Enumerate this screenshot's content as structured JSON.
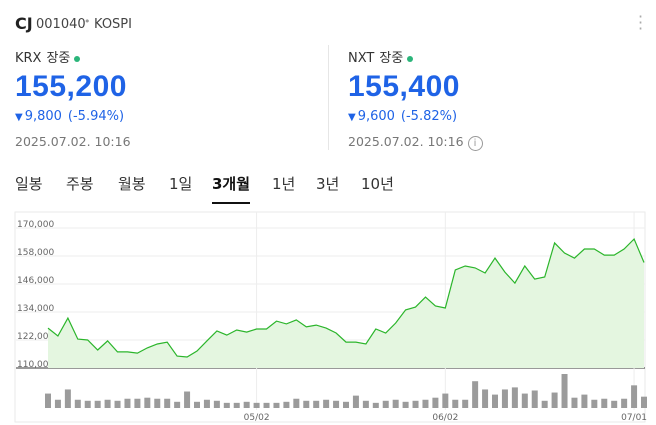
{
  "header": {
    "name": "CJ",
    "code": "001040",
    "market": "KOSPI"
  },
  "quotes": [
    {
      "exchange": "KRX",
      "status": "장중",
      "price": "155,200",
      "change": "9,800",
      "change_pct": "(-5.94%)",
      "time": "2025.07.02. 10:16"
    },
    {
      "exchange": "NXT",
      "status": "장중",
      "price": "155,400",
      "change": "9,600",
      "change_pct": "(-5.82%)",
      "time": "2025.07.02. 10:16"
    }
  ],
  "tabs": {
    "items": [
      "일봉",
      "주봉",
      "월봉",
      "1일",
      "3개월",
      "1년",
      "3년",
      "10년"
    ],
    "selected": 4
  },
  "chart_data": {
    "type": "line",
    "categories": [
      null,
      null,
      null,
      null,
      null,
      null,
      null,
      null,
      null,
      null,
      null,
      null,
      null,
      null,
      null,
      null,
      null,
      null,
      null,
      null,
      null,
      "05/02",
      null,
      null,
      null,
      null,
      null,
      null,
      null,
      null,
      null,
      null,
      null,
      null,
      null,
      null,
      null,
      null,
      null,
      null,
      "06/02",
      null,
      null,
      null,
      null,
      null,
      null,
      null,
      null,
      null,
      null,
      null,
      null,
      null,
      null,
      null,
      null,
      null,
      null,
      "07/01",
      null
    ],
    "series": [
      {
        "color": "#2bb52b",
        "fill": "#e4f6e0",
        "values": [
          127100,
          123700,
          131400,
          122400,
          122000,
          117700,
          121600,
          116900,
          116900,
          116400,
          118600,
          120300,
          121100,
          115100,
          114700,
          117300,
          121600,
          125900,
          124100,
          126300,
          125400,
          126700,
          126700,
          130100,
          128900,
          130600,
          127600,
          128400,
          127100,
          125000,
          121100,
          121100,
          120300,
          126700,
          125000,
          129300,
          134900,
          136100,
          140400,
          136600,
          135700,
          152000,
          153700,
          152900,
          150700,
          157100,
          151100,
          146400,
          153700,
          148100,
          149000,
          163600,
          159300,
          157100,
          161000,
          161000,
          158400,
          158400,
          161000,
          165300,
          155200
        ]
      }
    ],
    "volume": {
      "color": "#9b9b9b",
      "values": [
        14,
        8,
        18,
        8,
        7,
        7,
        8,
        7,
        9,
        9,
        10,
        9,
        9,
        6,
        16,
        6,
        8,
        7,
        5,
        5,
        6,
        5,
        5,
        5,
        6,
        9,
        7,
        7,
        8,
        7,
        6,
        12,
        7,
        5,
        7,
        8,
        6,
        7,
        8,
        10,
        14,
        8,
        8,
        26,
        18,
        13,
        18,
        20,
        14,
        17,
        7,
        15,
        33,
        10,
        13,
        8,
        9,
        7,
        9,
        22,
        11
      ]
    },
    "ylim": [
      110000,
      170000
    ],
    "yticks": [
      {
        "value": 110000,
        "label": "110,000"
      },
      {
        "value": 122000,
        "label": "122,000"
      },
      {
        "value": 134000,
        "label": "134,000"
      },
      {
        "value": 146000,
        "label": "146,000"
      },
      {
        "value": 158000,
        "label": "158,000"
      },
      {
        "value": 170000,
        "label": "170,000"
      }
    ],
    "grid": true
  }
}
